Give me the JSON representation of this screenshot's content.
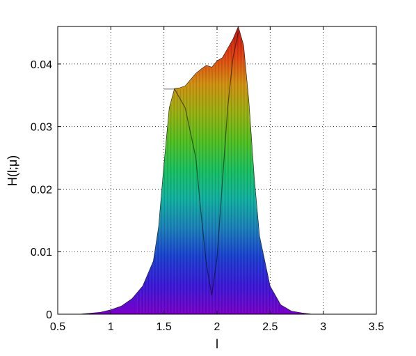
{
  "chart_data": {
    "type": "area",
    "title": "",
    "xlabel": "l",
    "ylabel": "H(l;μ)",
    "xlim": [
      0.5,
      3.5
    ],
    "ylim": [
      0,
      0.046
    ],
    "grid": true,
    "x_ticks": [
      0.5,
      1,
      1.5,
      2,
      2.5,
      3,
      3.5
    ],
    "x_tick_labels": [
      "0.5",
      "1",
      "1.5",
      "2",
      "2.5",
      "3",
      "3.5"
    ],
    "y_ticks": [
      0,
      0.01,
      0.02,
      0.03,
      0.04
    ],
    "y_tick_labels": [
      "0",
      "0.01",
      "0.02",
      "0.03",
      "0.04"
    ],
    "colormap": [
      "#7a00c8",
      "#3a18d8",
      "#1a40d0",
      "#1a80b8",
      "#10b0a0",
      "#18c060",
      "#50c020",
      "#98b010",
      "#d09010",
      "#e04010",
      "#c01010"
    ],
    "series": [
      {
        "x": [
          0.7,
          0.9,
          1.0,
          1.1,
          1.2,
          1.3,
          1.4,
          1.45,
          1.5,
          1.55,
          1.6,
          1.65,
          1.7,
          1.75,
          1.8,
          1.85,
          1.9,
          1.95,
          2.0,
          2.05,
          2.1,
          2.15,
          2.2,
          2.25,
          2.3,
          2.35,
          2.4,
          2.5,
          2.6,
          2.7,
          2.8,
          2.9
        ],
        "y": [
          0.0,
          0.0003,
          0.0007,
          0.0013,
          0.0025,
          0.0045,
          0.0085,
          0.014,
          0.024,
          0.033,
          0.0361,
          0.0362,
          0.0365,
          0.0375,
          0.0385,
          0.0392,
          0.0398,
          0.0395,
          0.0405,
          0.041,
          0.0425,
          0.044,
          0.046,
          0.043,
          0.034,
          0.022,
          0.0125,
          0.0045,
          0.0015,
          0.0005,
          0.0002,
          0.0
        ]
      }
    ],
    "inner_edge": {
      "x": [
        1.5,
        1.6,
        1.7,
        1.8,
        1.85,
        1.9,
        1.95,
        2.0,
        2.05,
        2.1,
        2.15,
        2.2
      ],
      "y": [
        0.036,
        0.036,
        0.033,
        0.025,
        0.016,
        0.008,
        0.003,
        0.009,
        0.021,
        0.033,
        0.041,
        0.045
      ]
    }
  }
}
